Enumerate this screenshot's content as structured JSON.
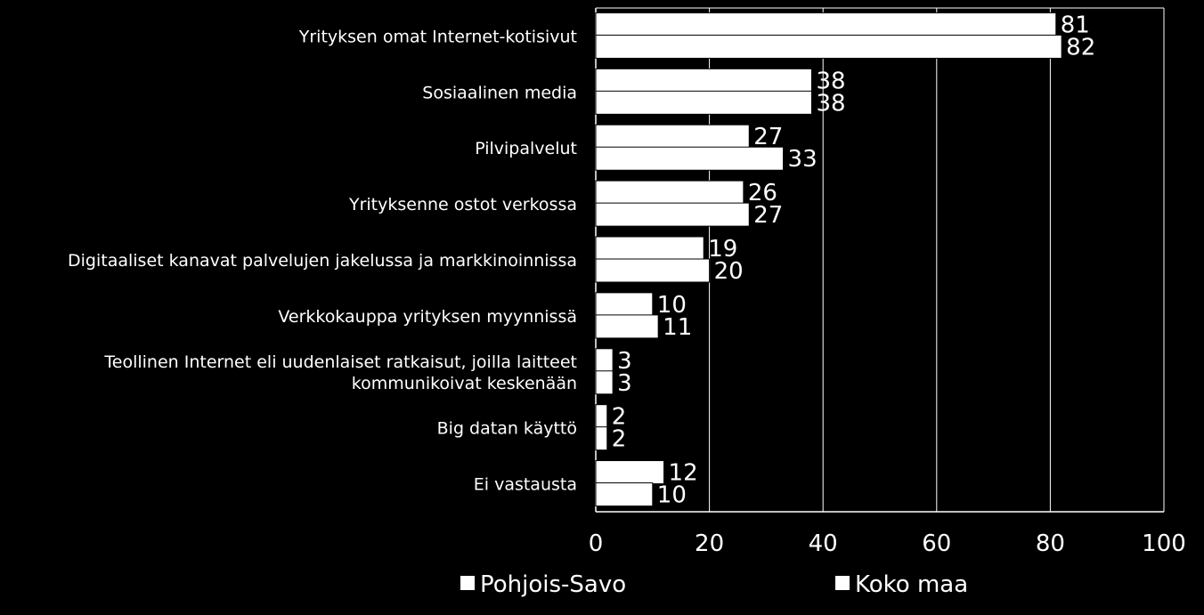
{
  "chart_data": {
    "type": "bar",
    "orientation": "horizontal",
    "categories": [
      [
        "Yrityksen omat Internet-kotisivut"
      ],
      [
        "Sosiaalinen media"
      ],
      [
        "Pilvipalvelut"
      ],
      [
        "Yrityksenne ostot verkossa"
      ],
      [
        "Digitaaliset kanavat palvelujen jakelussa ja markkinoinnissa"
      ],
      [
        "Verkkokauppa yrityksen myynnissä"
      ],
      [
        "Teollinen Internet eli uudenlaiset ratkaisut, joilla laitteet",
        "kommunikoivat keskenään"
      ],
      [
        "Big datan käyttö"
      ],
      [
        "Ei vastausta"
      ]
    ],
    "series": [
      {
        "name": "Pohjois-Savo",
        "values": [
          81,
          38,
          27,
          26,
          19,
          10,
          3,
          2,
          12
        ]
      },
      {
        "name": "Koko maa",
        "values": [
          82,
          38,
          33,
          27,
          20,
          11,
          3,
          2,
          10
        ]
      }
    ],
    "xlim": [
      0,
      100
    ],
    "xticks": [
      0,
      20,
      40,
      60,
      80,
      100
    ],
    "grid": true,
    "legend_position": "bottom",
    "colors": {
      "background": "#000000",
      "bar": "#ffffff",
      "text": "#ffffff",
      "grid": "#ffffff"
    }
  }
}
